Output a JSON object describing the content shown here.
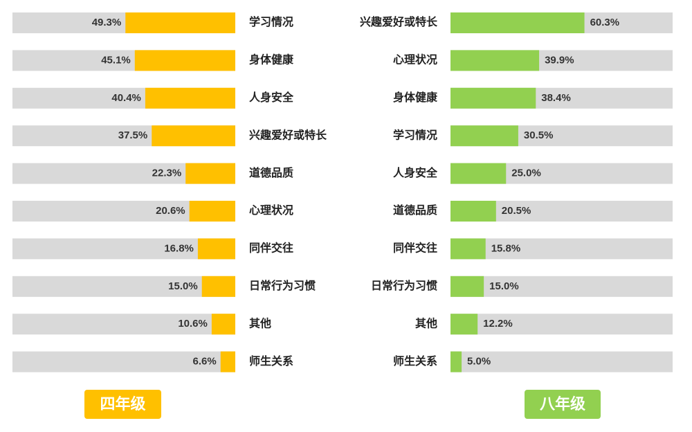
{
  "chart_data": [
    {
      "type": "bar",
      "orientation": "horizontal",
      "x_reversed": true,
      "title": "四年级",
      "color": "#ffc000",
      "categories": [
        "学习情况",
        "身体健康",
        "人身安全",
        "兴趣爱好或特长",
        "道德品质",
        "心理状况",
        "同伴交往",
        "日常行为习惯",
        "其他",
        "师生关系"
      ],
      "values": [
        49.3,
        45.1,
        40.4,
        37.5,
        22.3,
        20.6,
        16.8,
        15.0,
        10.6,
        6.6
      ],
      "value_labels": [
        "49.3%",
        "45.1%",
        "40.4%",
        "37.5%",
        "22.3%",
        "20.6%",
        "16.8%",
        "15.0%",
        "10.6%",
        "6.6%"
      ],
      "xlim": [
        0,
        100
      ]
    },
    {
      "type": "bar",
      "orientation": "horizontal",
      "x_reversed": false,
      "title": "八年级",
      "color": "#92d050",
      "categories": [
        "兴趣爱好或特长",
        "心理状况",
        "身体健康",
        "学习情况",
        "人身安全",
        "道德品质",
        "同伴交往",
        "日常行为习惯",
        "其他",
        "师生关系"
      ],
      "values": [
        60.3,
        39.9,
        38.4,
        30.5,
        25.0,
        20.5,
        15.8,
        15.0,
        12.2,
        5.0
      ],
      "value_labels": [
        "60.3%",
        "39.9%",
        "38.4%",
        "30.5%",
        "25.0%",
        "20.5%",
        "15.8%",
        "15.0%",
        "12.2%",
        "5.0%"
      ],
      "xlim": [
        0,
        100
      ]
    }
  ]
}
